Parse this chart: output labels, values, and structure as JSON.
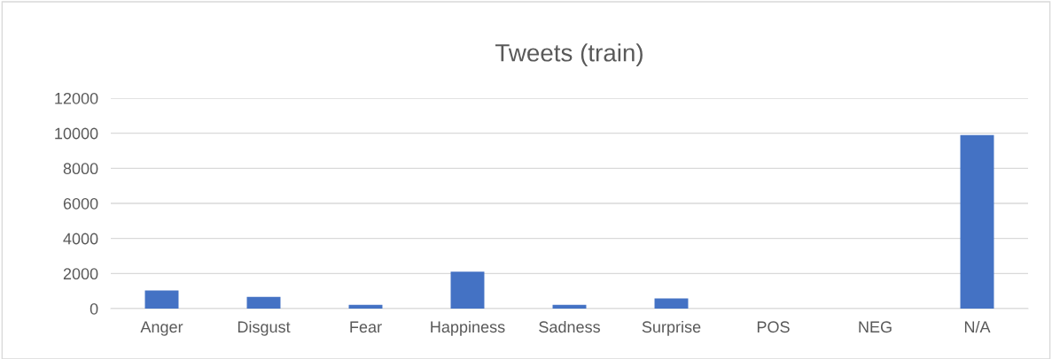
{
  "chart_data": {
    "type": "bar",
    "title": "Tweets (train)",
    "categories": [
      "Anger",
      "Disgust",
      "Fear",
      "Happiness",
      "Sadness",
      "Surprise",
      "POS",
      "NEG",
      "N/A"
    ],
    "values": [
      1030,
      670,
      220,
      2110,
      220,
      580,
      0,
      0,
      9900
    ],
    "color": "#4472c4",
    "ylim": [
      0,
      12000
    ],
    "yticks": [
      0,
      2000,
      4000,
      6000,
      8000,
      10000,
      12000
    ],
    "grid": "y",
    "legend": false
  }
}
